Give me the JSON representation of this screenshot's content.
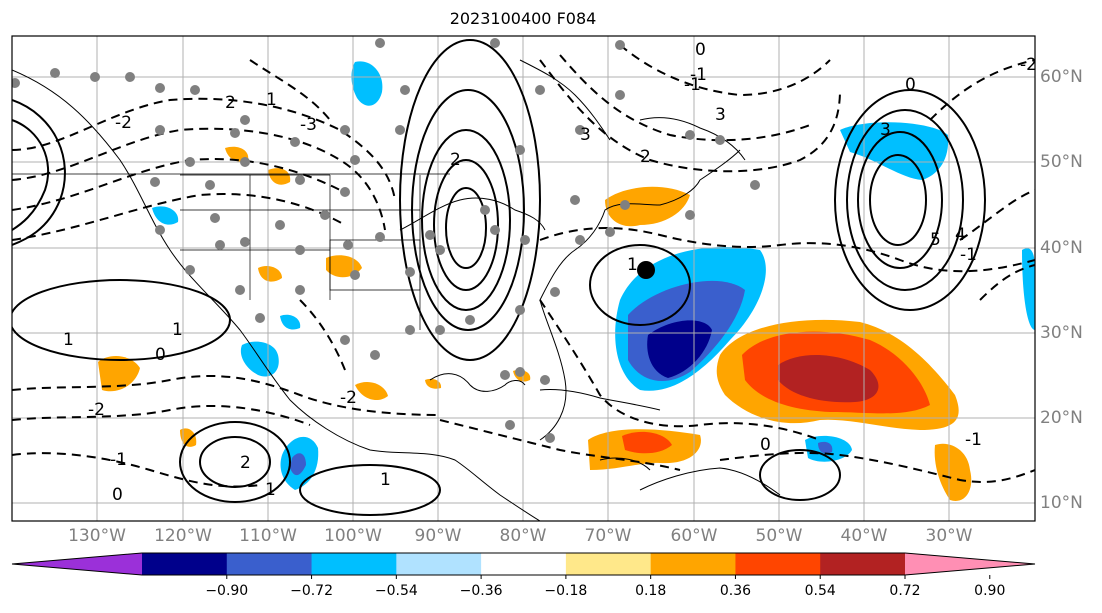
{
  "title": "2023100400 F084",
  "colors": {
    "land_line": "#000000",
    "contour": "#000000",
    "grid": "#b0b0b0",
    "station": "#808080"
  },
  "map": {
    "lon_labels": [
      "130°W",
      "120°W",
      "110°W",
      "100°W",
      "90°W",
      "80°W",
      "70°W",
      "60°W",
      "50°W",
      "40°W",
      "30°W"
    ],
    "lat_labels": [
      "60°N",
      "50°N",
      "40°N",
      "30°N",
      "20°N",
      "10°N"
    ],
    "contour_labels": [
      "0",
      "1",
      "2",
      "3",
      "-1",
      "-2",
      "-3",
      "0",
      "1",
      "2",
      "3",
      "-1",
      "-2",
      "-1",
      "0",
      "1",
      "2",
      "3",
      "4",
      "5",
      "-1",
      "-2",
      "1",
      "0",
      "-1",
      "0",
      "1",
      "2",
      "-2",
      "1"
    ]
  },
  "colorbar": {
    "ticks": [
      "−0.90",
      "−0.72",
      "−0.54",
      "−0.36",
      "−0.18",
      "0.18",
      "0.36",
      "0.54",
      "0.72",
      "0.90"
    ],
    "colors": [
      "#9b30d9",
      "#00008b",
      "#3a5fcd",
      "#00bfff",
      "#b0e2ff",
      "#ffffff",
      "#ffe88a",
      "#ffa500",
      "#ff4500",
      "#b22222",
      "#ff8fb4"
    ]
  }
}
